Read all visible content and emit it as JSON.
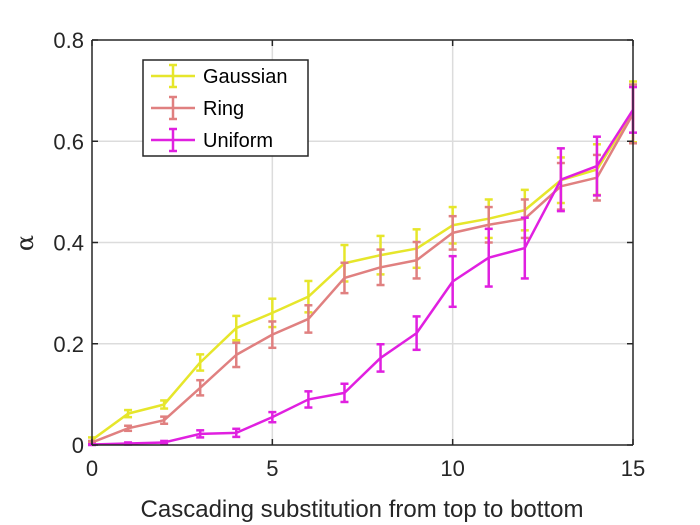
{
  "chart_data": {
    "type": "line",
    "xlabel": "Cascading substitution from top to bottom",
    "ylabel": "α",
    "xlim": [
      0,
      15
    ],
    "ylim": [
      0,
      0.8
    ],
    "xticks": [
      0,
      5,
      10,
      15
    ],
    "xtick_labels": [
      "0",
      "5",
      "10",
      "15"
    ],
    "yticks": [
      0,
      0.2,
      0.4,
      0.6,
      0.8
    ],
    "ytick_labels": [
      "0",
      "0.2",
      "0.4",
      "0.6",
      "0.8"
    ],
    "grid": true,
    "legend_position": "top-left",
    "x": [
      0,
      1,
      2,
      3,
      4,
      5,
      6,
      7,
      8,
      9,
      10,
      11,
      12,
      13,
      14,
      15
    ],
    "series": [
      {
        "name": "Gaussian",
        "color": "#e6e62b",
        "values": [
          0.01,
          0.062,
          0.08,
          0.163,
          0.231,
          0.261,
          0.293,
          0.359,
          0.375,
          0.388,
          0.434,
          0.447,
          0.464,
          0.523,
          0.544,
          0.658
        ],
        "errors": [
          0.005,
          0.007,
          0.008,
          0.016,
          0.024,
          0.028,
          0.031,
          0.036,
          0.038,
          0.038,
          0.036,
          0.038,
          0.04,
          0.045,
          0.05,
          0.06
        ]
      },
      {
        "name": "Ring",
        "color": "#e08080",
        "values": [
          0.005,
          0.033,
          0.049,
          0.113,
          0.178,
          0.218,
          0.249,
          0.33,
          0.351,
          0.365,
          0.419,
          0.435,
          0.447,
          0.511,
          0.528,
          0.654
        ],
        "errors": [
          0.003,
          0.005,
          0.007,
          0.015,
          0.024,
          0.026,
          0.027,
          0.03,
          0.035,
          0.036,
          0.033,
          0.035,
          0.038,
          0.046,
          0.045,
          0.058
        ]
      },
      {
        "name": "Uniform",
        "color": "#e020e0",
        "values": [
          0.001,
          0.003,
          0.005,
          0.022,
          0.024,
          0.055,
          0.09,
          0.103,
          0.172,
          0.221,
          0.323,
          0.37,
          0.389,
          0.524,
          0.551,
          0.662
        ],
        "errors": [
          0.001,
          0.002,
          0.003,
          0.007,
          0.008,
          0.01,
          0.016,
          0.018,
          0.027,
          0.033,
          0.05,
          0.057,
          0.06,
          0.062,
          0.058,
          0.045
        ]
      }
    ]
  }
}
